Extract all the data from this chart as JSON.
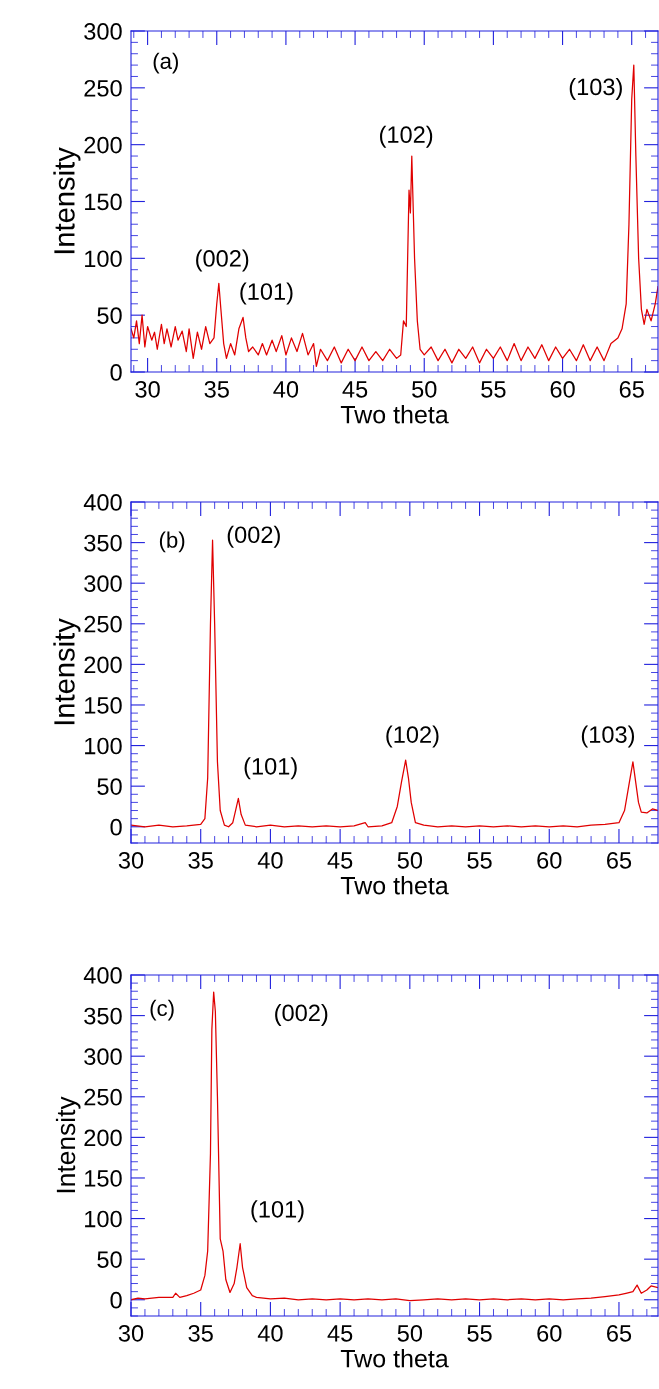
{
  "chart_data": [
    {
      "type": "line",
      "xlabel": "Two theta",
      "ylabel": "Intensity",
      "xlim": [
        28.8,
        66.9
      ],
      "ylim": [
        0,
        300
      ],
      "xticks": [
        30,
        35,
        40,
        45,
        50,
        55,
        60,
        65
      ],
      "yticks": [
        0,
        50,
        100,
        150,
        200,
        250,
        300
      ],
      "grid": false,
      "legend": false,
      "marker": "none",
      "line_style": "solid",
      "annotations": [
        "(a)",
        "(002)",
        "(101)",
        "(102)",
        "(103)"
      ],
      "series": [
        {
          "color": "#e00000",
          "x": [
            28.8,
            29.0,
            29.2,
            29.4,
            29.6,
            29.8,
            30.0,
            30.3,
            30.5,
            30.7,
            31.0,
            31.2,
            31.4,
            31.7,
            32.0,
            32.2,
            32.5,
            32.8,
            33.0,
            33.3,
            33.6,
            33.9,
            34.2,
            34.5,
            34.8,
            35.0,
            35.15,
            35.3,
            35.5,
            35.7,
            36.0,
            36.3,
            36.6,
            36.9,
            37.1,
            37.3,
            37.6,
            38.0,
            38.3,
            38.6,
            39.0,
            39.3,
            39.7,
            40.0,
            40.4,
            40.8,
            41.2,
            41.6,
            42.0,
            42.2,
            42.5,
            43.0,
            43.5,
            44.0,
            44.5,
            45.0,
            45.5,
            46.0,
            46.5,
            47.0,
            47.5,
            48.0,
            48.3,
            48.5,
            48.7,
            48.9,
            49.0,
            49.1,
            49.3,
            49.5,
            49.7,
            50.0,
            50.5,
            51.0,
            51.5,
            52.0,
            52.5,
            53.0,
            53.5,
            54.0,
            54.5,
            55.0,
            55.5,
            56.0,
            56.5,
            57.0,
            57.5,
            58.0,
            58.5,
            59.0,
            59.5,
            60.0,
            60.5,
            61.0,
            61.5,
            62.0,
            62.5,
            63.0,
            63.5,
            64.0,
            64.3,
            64.6,
            64.8,
            65.0,
            65.15,
            65.3,
            65.5,
            65.7,
            65.9,
            66.1,
            66.4,
            66.7,
            66.9
          ],
          "values": [
            38,
            30,
            45,
            25,
            50,
            22,
            40,
            28,
            35,
            20,
            42,
            25,
            38,
            22,
            40,
            28,
            36,
            18,
            38,
            12,
            35,
            20,
            40,
            25,
            30,
            60,
            78,
            55,
            25,
            12,
            25,
            15,
            38,
            48,
            30,
            18,
            22,
            15,
            25,
            15,
            28,
            18,
            32,
            15,
            30,
            18,
            34,
            15,
            25,
            5,
            20,
            10,
            22,
            8,
            20,
            10,
            22,
            10,
            18,
            10,
            20,
            12,
            15,
            45,
            40,
            160,
            140,
            190,
            100,
            45,
            20,
            15,
            22,
            10,
            20,
            8,
            20,
            12,
            22,
            8,
            20,
            12,
            22,
            10,
            25,
            10,
            22,
            12,
            24,
            10,
            22,
            12,
            20,
            10,
            24,
            10,
            22,
            10,
            25,
            30,
            38,
            60,
            130,
            240,
            270,
            190,
            100,
            55,
            42,
            55,
            45,
            60,
            75
          ]
        }
      ]
    },
    {
      "type": "line",
      "xlabel": "Two theta",
      "ylabel": "Intensity",
      "xlim": [
        30,
        67.8
      ],
      "ylim": [
        -20,
        400
      ],
      "xticks": [
        30,
        35,
        40,
        45,
        50,
        55,
        60,
        65
      ],
      "yticks": [
        0,
        50,
        100,
        150,
        200,
        250,
        300,
        350,
        400
      ],
      "grid": false,
      "legend": false,
      "marker": "none",
      "line_style": "solid",
      "annotations": [
        "(b)",
        "(002)",
        "(101)",
        "(102)",
        "(103)"
      ],
      "series": [
        {
          "color": "#e00000",
          "x": [
            30,
            31,
            32,
            33,
            34,
            35,
            35.3,
            35.5,
            35.7,
            35.85,
            36.0,
            36.2,
            36.4,
            36.7,
            37.0,
            37.3,
            37.5,
            37.7,
            37.9,
            38.2,
            39,
            40,
            41,
            42,
            43,
            44,
            45,
            46,
            46.8,
            47,
            48,
            48.7,
            49.1,
            49.4,
            49.7,
            49.9,
            50.1,
            50.4,
            51,
            52,
            53,
            54,
            55,
            56,
            57,
            58,
            59,
            60,
            61,
            62,
            63,
            64,
            65,
            65.4,
            65.7,
            66.0,
            66.2,
            66.4,
            66.6,
            67,
            67.4,
            67.8
          ],
          "values": [
            2,
            0,
            2,
            0,
            1,
            3,
            10,
            60,
            250,
            353,
            250,
            80,
            20,
            2,
            0,
            5,
            20,
            35,
            15,
            2,
            0,
            2,
            0,
            1,
            0,
            1,
            0,
            1,
            5,
            0,
            1,
            5,
            25,
            55,
            82,
            60,
            30,
            5,
            2,
            0,
            1,
            0,
            1,
            0,
            1,
            0,
            1,
            0,
            1,
            0,
            2,
            3,
            5,
            20,
            50,
            80,
            55,
            30,
            18,
            17,
            22,
            20
          ]
        }
      ]
    },
    {
      "type": "line",
      "xlabel": "Two theta",
      "ylabel": "Intensity",
      "xlim": [
        30,
        67.8
      ],
      "ylim": [
        -20,
        400
      ],
      "xticks": [
        30,
        35,
        40,
        45,
        50,
        55,
        60,
        65
      ],
      "yticks": [
        0,
        50,
        100,
        150,
        200,
        250,
        300,
        350,
        400
      ],
      "grid": false,
      "legend": false,
      "marker": "none",
      "line_style": "solid",
      "annotations": [
        "(c)",
        "(002)",
        "(101)"
      ],
      "series": [
        {
          "color": "#e00000",
          "x": [
            30,
            30.5,
            31,
            32,
            33,
            33.2,
            33.5,
            34,
            34.5,
            35,
            35.3,
            35.5,
            35.7,
            35.8,
            35.93,
            36.05,
            36.2,
            36.4,
            36.6,
            36.8,
            37.1,
            37.4,
            37.6,
            37.83,
            38.0,
            38.3,
            38.7,
            39,
            40,
            41,
            42,
            43,
            44,
            45,
            46,
            47,
            48,
            49,
            50,
            51,
            52,
            53,
            54,
            55,
            56,
            57,
            58,
            59,
            60,
            61,
            62,
            63,
            64,
            65,
            65.5,
            66,
            66.3,
            66.6,
            67.0,
            67.3,
            67.8
          ],
          "values": [
            0,
            2,
            1,
            3,
            3,
            8,
            3,
            5,
            8,
            12,
            30,
            60,
            180,
            333,
            379,
            355,
            250,
            75,
            60,
            25,
            9,
            20,
            40,
            69,
            40,
            15,
            5,
            3,
            1,
            2,
            0,
            1,
            0,
            1,
            0,
            1,
            0,
            1,
            -1,
            0,
            1,
            0,
            1,
            0,
            1,
            0,
            1,
            0,
            1,
            0,
            1,
            2,
            4,
            6,
            8,
            10,
            18,
            8,
            12,
            17,
            15
          ]
        }
      ]
    }
  ]
}
